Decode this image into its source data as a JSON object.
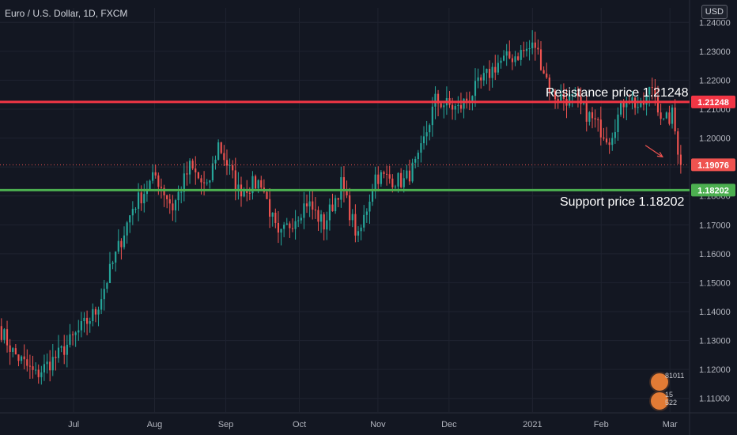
{
  "header": {
    "title": "Euro / U.S. Dollar, 1D, FXCM",
    "currency": "USD"
  },
  "annotations": {
    "resistance": "Resistance price 1.21248",
    "support": "Support price 1.18202"
  },
  "widget": {
    "value_top": "81011",
    "value_bottom": "15 522"
  },
  "colors": {
    "background": "#131722",
    "grid": "#1f2330",
    "bullish": "#26a69a",
    "bearish": "#ef5350",
    "resistance": "#f23645",
    "support": "#4caf50",
    "axis_text": "#b2b5be"
  },
  "chart_data": {
    "type": "candlestick",
    "title": "Euro / U.S. Dollar, 1D, FXCM",
    "ylim": [
      1.105,
      1.245
    ],
    "y_ticks": [
      "1.24000",
      "1.23000",
      "1.22000",
      "1.21000",
      "1.20000",
      "1.19000",
      "1.18000",
      "1.17000",
      "1.16000",
      "1.15000",
      "1.14000",
      "1.13000",
      "1.12000",
      "1.11000"
    ],
    "x_ticks": [
      {
        "label": "Jul",
        "date": "2020-07-01"
      },
      {
        "label": "Aug",
        "date": "2020-08-03"
      },
      {
        "label": "Sep",
        "date": "2020-09-01"
      },
      {
        "label": "Oct",
        "date": "2020-10-01"
      },
      {
        "label": "Nov",
        "date": "2020-11-02"
      },
      {
        "label": "Dec",
        "date": "2020-12-01"
      },
      {
        "label": "2021",
        "date": "2021-01-04"
      },
      {
        "label": "Feb",
        "date": "2021-02-01"
      },
      {
        "label": "Mar",
        "date": "2021-03-01"
      }
    ],
    "x_range": [
      "2020-06-01",
      "2021-03-09"
    ],
    "horizontal_lines": [
      {
        "name": "resistance",
        "value": 1.21248,
        "label": "1.21248",
        "color": "#f23645"
      },
      {
        "name": "support",
        "value": 1.18202,
        "label": "1.18202",
        "color": "#4caf50"
      }
    ],
    "last_price": {
      "value": 1.19076,
      "label": "1.19076",
      "color": "#ef5350"
    },
    "arrow": {
      "from": {
        "date": "2021-02-19",
        "price": 1.1975
      },
      "to": {
        "date": "2021-02-26",
        "price": 1.1935
      }
    },
    "grid": true,
    "segments": [
      {
        "days": 5,
        "start": 1.135,
        "end": 1.126
      },
      {
        "days": 8,
        "start": 1.126,
        "end": 1.118
      },
      {
        "days": 8,
        "start": 1.118,
        "end": 1.125
      },
      {
        "days": 13,
        "start": 1.125,
        "end": 1.14
      },
      {
        "days": 13,
        "start": 1.14,
        "end": 1.176
      },
      {
        "days": 8,
        "start": 1.176,
        "end": 1.187
      },
      {
        "days": 6,
        "start": 1.187,
        "end": 1.176
      },
      {
        "days": 6,
        "start": 1.176,
        "end": 1.19
      },
      {
        "days": 6,
        "start": 1.19,
        "end": 1.182
      },
      {
        "days": 4,
        "start": 1.182,
        "end": 1.198
      },
      {
        "days": 7,
        "start": 1.198,
        "end": 1.182
      },
      {
        "days": 8,
        "start": 1.182,
        "end": 1.185
      },
      {
        "days": 6,
        "start": 1.185,
        "end": 1.165
      },
      {
        "days": 10,
        "start": 1.165,
        "end": 1.178
      },
      {
        "days": 6,
        "start": 1.178,
        "end": 1.17
      },
      {
        "days": 6,
        "start": 1.17,
        "end": 1.184
      },
      {
        "days": 6,
        "start": 1.184,
        "end": 1.165
      },
      {
        "days": 6,
        "start": 1.165,
        "end": 1.187
      },
      {
        "days": 10,
        "start": 1.187,
        "end": 1.185
      },
      {
        "days": 5,
        "start": 1.185,
        "end": 1.192
      },
      {
        "days": 6,
        "start": 1.192,
        "end": 1.213
      },
      {
        "days": 8,
        "start": 1.213,
        "end": 1.21
      },
      {
        "days": 14,
        "start": 1.21,
        "end": 1.226
      },
      {
        "days": 7,
        "start": 1.226,
        "end": 1.229
      },
      {
        "days": 6,
        "start": 1.229,
        "end": 1.232
      },
      {
        "days": 6,
        "start": 1.232,
        "end": 1.215
      },
      {
        "days": 8,
        "start": 1.215,
        "end": 1.213
      },
      {
        "days": 8,
        "start": 1.213,
        "end": 1.204
      },
      {
        "days": 4,
        "start": 1.204,
        "end": 1.2
      },
      {
        "days": 6,
        "start": 1.2,
        "end": 1.215
      },
      {
        "days": 5,
        "start": 1.215,
        "end": 1.21
      },
      {
        "days": 4,
        "start": 1.21,
        "end": 1.218
      },
      {
        "days": 4,
        "start": 1.218,
        "end": 1.205
      },
      {
        "days": 3,
        "start": 1.205,
        "end": 1.208
      },
      {
        "days": 3,
        "start": 1.208,
        "end": 1.1908
      }
    ]
  }
}
